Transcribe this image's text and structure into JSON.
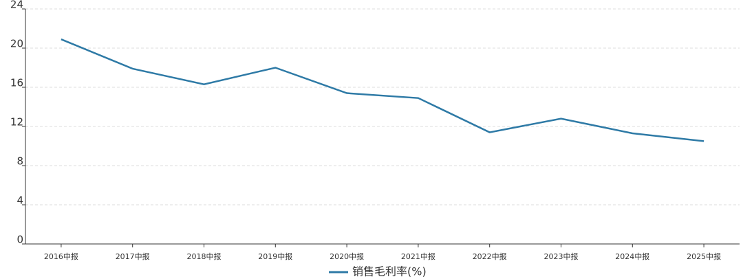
{
  "chart_data": {
    "type": "line",
    "categories": [
      "2016中报",
      "2017中报",
      "2018中报",
      "2019中报",
      "2020中报",
      "2021中报",
      "2022中报",
      "2023中报",
      "2024中报",
      "2025中报"
    ],
    "series": [
      {
        "name": "销售毛利率(%)",
        "color": "#2e7aa6",
        "values": [
          20.9,
          17.9,
          16.3,
          18.0,
          15.4,
          14.9,
          11.4,
          12.8,
          11.3,
          10.5
        ]
      }
    ],
    "ylim": [
      0,
      24
    ],
    "yticks": [
      0,
      4,
      8,
      12,
      16,
      20,
      24
    ],
    "grid": true,
    "legend": "bottom"
  }
}
